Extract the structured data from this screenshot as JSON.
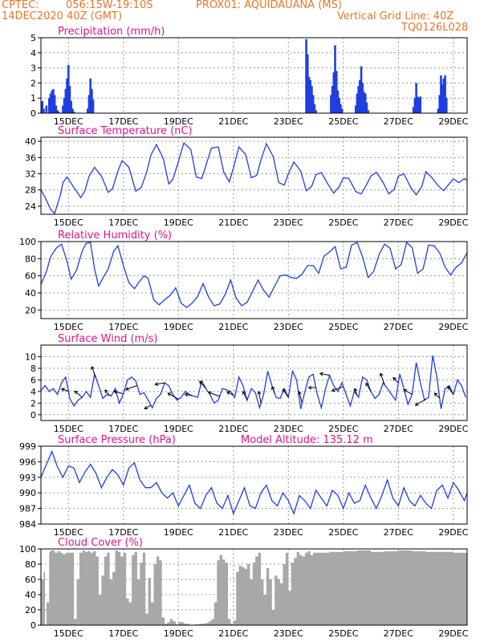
{
  "header": {
    "source": "CPTEC:",
    "coords": "056:15W-19:10S",
    "location": "PROX01: AQUIDAUANA (MS)",
    "date": "14DEC2020 40Z (GMT)",
    "grid_note": "Vertical Grid Line: 40Z",
    "model": "TQ0126L028"
  },
  "colors": {
    "header": "#e8762a",
    "title": "#e0138c",
    "series": "#1f3fe0",
    "cloud": "#a8a8a8",
    "grid": "#9a9a9a"
  },
  "chart_data": [
    {
      "id": "precip",
      "type": "bar",
      "title": "Precipitation (mm/h)",
      "ylim": [
        0,
        5
      ],
      "yticks": [
        0,
        1,
        2,
        3,
        4,
        5
      ],
      "xlim": [
        14,
        29.5
      ],
      "xticks": [
        {
          "x": 15,
          "label": "15DEC"
        },
        {
          "x": 17,
          "label": "17DEC"
        },
        {
          "x": 19,
          "label": "19DEC"
        },
        {
          "x": 21,
          "label": "21DEC"
        },
        {
          "x": 23,
          "label": "23DEC"
        },
        {
          "x": 25,
          "label": "25DEC"
        },
        {
          "x": 27,
          "label": "27DEC"
        },
        {
          "x": 29,
          "label": "29DEC"
        }
      ],
      "x": [
        14.05,
        14.1,
        14.2,
        14.3,
        14.35,
        14.4,
        14.45,
        14.5,
        14.55,
        14.6,
        14.65,
        14.8,
        14.85,
        14.9,
        14.95,
        15.0,
        15.05,
        15.1,
        15.15,
        15.2,
        15.7,
        15.75,
        15.8,
        15.85,
        15.9,
        23.65,
        23.7,
        23.75,
        23.8,
        23.85,
        23.9,
        23.95,
        24.0,
        24.55,
        24.6,
        24.65,
        24.7,
        24.75,
        24.8,
        24.85,
        24.9,
        24.95,
        25.45,
        25.5,
        25.55,
        25.6,
        25.65,
        25.7,
        25.75,
        25.8,
        25.85,
        25.9,
        27.55,
        27.6,
        27.65,
        27.7,
        27.75,
        27.8,
        28.45,
        28.5,
        28.55,
        28.6,
        28.65,
        28.7,
        28.75
      ],
      "values": [
        0.8,
        0.3,
        0.5,
        1.0,
        1.3,
        1.5,
        1.6,
        1.2,
        0.5,
        0.2,
        0.1,
        0.5,
        1.0,
        1.6,
        2.3,
        3.2,
        1.8,
        0.8,
        0.3,
        0.1,
        0.3,
        1.2,
        2.3,
        1.6,
        0.9,
        4.9,
        3.9,
        2.4,
        2.2,
        1.8,
        1.2,
        0.6,
        0.2,
        1.2,
        1.8,
        2.7,
        4.5,
        2.8,
        1.5,
        1.0,
        0.6,
        0.3,
        0.5,
        1.3,
        1.8,
        2.2,
        3.1,
        2.0,
        1.4,
        1.3,
        0.7,
        0.2,
        0.4,
        1.0,
        2.0,
        1.1,
        1.0,
        1.1,
        0.3,
        1.2,
        2.5,
        1.9,
        2.3,
        2.5,
        1.0
      ]
    },
    {
      "id": "temp",
      "type": "line",
      "title": "Surface Temperature (nC)",
      "ylim": [
        22,
        41
      ],
      "yticks": [
        24,
        28,
        32,
        36,
        40
      ],
      "xlim": [
        14,
        29.5
      ],
      "xticks": [
        {
          "x": 15,
          "label": "15DEC"
        },
        {
          "x": 17,
          "label": "17DEC"
        },
        {
          "x": 19,
          "label": "19DEC"
        },
        {
          "x": 21,
          "label": "21DEC"
        },
        {
          "x": 23,
          "label": "23DEC"
        },
        {
          "x": 25,
          "label": "25DEC"
        },
        {
          "x": 27,
          "label": "27DEC"
        },
        {
          "x": 29,
          "label": "29DEC"
        }
      ],
      "x": [
        14.0,
        14.15,
        14.35,
        14.5,
        14.7,
        14.8,
        14.95,
        15.2,
        15.45,
        15.6,
        15.75,
        15.95,
        16.2,
        16.45,
        16.6,
        16.8,
        16.95,
        17.2,
        17.45,
        17.65,
        17.85,
        18.0,
        18.2,
        18.45,
        18.65,
        18.8,
        19.0,
        19.2,
        19.45,
        19.65,
        19.85,
        20.0,
        20.2,
        20.45,
        20.65,
        20.85,
        21.0,
        21.2,
        21.45,
        21.65,
        21.85,
        22.0,
        22.2,
        22.45,
        22.65,
        22.85,
        23.0,
        23.2,
        23.45,
        23.65,
        23.85,
        24.0,
        24.2,
        24.45,
        24.65,
        24.85,
        25.0,
        25.2,
        25.45,
        25.65,
        25.85,
        26.0,
        26.2,
        26.45,
        26.65,
        26.85,
        27.0,
        27.2,
        27.45,
        27.65,
        27.85,
        28.0,
        28.2,
        28.45,
        28.65,
        28.85,
        29.0,
        29.2,
        29.4,
        29.5
      ],
      "values": [
        28.0,
        26.2,
        23.2,
        22.2,
        26.6,
        29.8,
        31.2,
        28.6,
        26.1,
        27.8,
        31.4,
        33.6,
        31.4,
        27.4,
        28.3,
        32.6,
        35.2,
        33.6,
        27.7,
        28.6,
        32.5,
        36.6,
        39.2,
        35.8,
        29.5,
        30.6,
        35.0,
        39.6,
        38.0,
        31.2,
        30.8,
        34.0,
        38.3,
        38.6,
        32.4,
        30.0,
        33.4,
        38.6,
        36.7,
        31.0,
        31.6,
        35.4,
        39.4,
        36.2,
        29.8,
        29.2,
        32.0,
        34.9,
        32.6,
        27.8,
        28.9,
        31.8,
        32.3,
        29.3,
        27.2,
        28.8,
        31.0,
        30.8,
        27.6,
        27.0,
        29.4,
        31.4,
        32.4,
        29.8,
        27.0,
        28.2,
        31.4,
        32.0,
        28.6,
        26.8,
        28.8,
        32.5,
        31.2,
        29.0,
        27.8,
        29.5,
        30.7,
        29.8,
        30.8,
        30.3
      ]
    },
    {
      "id": "rh",
      "type": "line",
      "title": "Relative Humidity (%)",
      "ylim": [
        10,
        100
      ],
      "yticks": [
        20,
        40,
        60,
        80,
        100
      ],
      "xlim": [
        14,
        29.5
      ],
      "xticks": [
        {
          "x": 15,
          "label": "15DEC"
        },
        {
          "x": 17,
          "label": "17DEC"
        },
        {
          "x": 19,
          "label": "19DEC"
        },
        {
          "x": 21,
          "label": "21DEC"
        },
        {
          "x": 23,
          "label": "23DEC"
        },
        {
          "x": 25,
          "label": "25DEC"
        },
        {
          "x": 27,
          "label": "27DEC"
        },
        {
          "x": 29,
          "label": "29DEC"
        }
      ],
      "x": [
        14.0,
        14.2,
        14.35,
        14.55,
        14.75,
        14.95,
        15.1,
        15.3,
        15.5,
        15.65,
        15.8,
        15.95,
        16.1,
        16.3,
        16.45,
        16.65,
        16.8,
        17.0,
        17.2,
        17.4,
        17.6,
        17.75,
        17.9,
        18.1,
        18.3,
        18.5,
        18.7,
        18.9,
        19.1,
        19.3,
        19.5,
        19.7,
        19.9,
        20.1,
        20.3,
        20.5,
        20.7,
        20.9,
        21.1,
        21.3,
        21.5,
        21.7,
        21.9,
        22.1,
        22.3,
        22.5,
        22.7,
        22.9,
        23.1,
        23.3,
        23.5,
        23.7,
        23.9,
        24.1,
        24.3,
        24.5,
        24.7,
        24.9,
        25.1,
        25.3,
        25.5,
        25.7,
        25.9,
        26.1,
        26.3,
        26.5,
        26.7,
        26.9,
        27.1,
        27.3,
        27.5,
        27.7,
        27.9,
        28.1,
        28.3,
        28.5,
        28.7,
        28.9,
        29.1,
        29.3,
        29.5
      ],
      "values": [
        50,
        65,
        82,
        92,
        97,
        77,
        56,
        67,
        89,
        98,
        99,
        68,
        48,
        60,
        68,
        89,
        95,
        72,
        52,
        45,
        54,
        60,
        57,
        32,
        26,
        32,
        37,
        46,
        28,
        23,
        28,
        36,
        51,
        35,
        25,
        27,
        38,
        55,
        34,
        25,
        29,
        42,
        55,
        43,
        35,
        48,
        60,
        61,
        58,
        57,
        62,
        72,
        72,
        63,
        83,
        88,
        94,
        68,
        70,
        96,
        99,
        82,
        58,
        65,
        85,
        97,
        92,
        68,
        73,
        99,
        93,
        63,
        68,
        96,
        95,
        87,
        70,
        61,
        70,
        75,
        87
      ]
    },
    {
      "id": "wind",
      "type": "line",
      "title": "Surface Wind (m/s)",
      "ylim": [
        -1,
        12
      ],
      "yticks": [
        0,
        2,
        4,
        6,
        8,
        10
      ],
      "xlim": [
        14,
        29.5
      ],
      "xticks": [
        {
          "x": 15,
          "label": "15DEC"
        },
        {
          "x": 17,
          "label": "17DEC"
        },
        {
          "x": 19,
          "label": "19DEC"
        },
        {
          "x": 21,
          "label": "21DEC"
        },
        {
          "x": 23,
          "label": "23DEC"
        },
        {
          "x": 25,
          "label": "25DEC"
        },
        {
          "x": 27,
          "label": "27DEC"
        },
        {
          "x": 29,
          "label": "29DEC"
        }
      ],
      "x": [
        14.0,
        14.15,
        14.3,
        14.45,
        14.6,
        14.75,
        14.9,
        15.05,
        15.2,
        15.35,
        15.5,
        15.65,
        15.8,
        15.95,
        16.1,
        16.25,
        16.4,
        16.55,
        16.7,
        16.85,
        17.0,
        17.15,
        17.3,
        17.45,
        17.6,
        17.75,
        17.9,
        18.05,
        18.2,
        18.35,
        18.5,
        18.65,
        18.8,
        18.95,
        19.1,
        19.25,
        19.4,
        19.55,
        19.7,
        19.85,
        20.0,
        20.15,
        20.3,
        20.45,
        20.6,
        20.75,
        20.9,
        21.05,
        21.2,
        21.35,
        21.5,
        21.65,
        21.8,
        21.95,
        22.1,
        22.25,
        22.4,
        22.55,
        22.7,
        22.85,
        23.0,
        23.15,
        23.3,
        23.45,
        23.6,
        23.75,
        23.9,
        24.05,
        24.2,
        24.35,
        24.5,
        24.65,
        24.8,
        24.95,
        25.1,
        25.25,
        25.4,
        25.55,
        25.7,
        25.85,
        26.0,
        26.15,
        26.3,
        26.45,
        26.6,
        26.75,
        26.9,
        27.05,
        27.2,
        27.35,
        27.5,
        27.65,
        27.8,
        27.95,
        28.1,
        28.25,
        28.4,
        28.55,
        28.7,
        28.85,
        29.0,
        29.15,
        29.3,
        29.45
      ],
      "values": [
        4.2,
        5.0,
        4.0,
        4.5,
        3.5,
        5.5,
        6.5,
        2.8,
        1.5,
        2.5,
        3.0,
        4.0,
        3.0,
        7.0,
        5.0,
        2.8,
        3.5,
        3.2,
        4.5,
        2.0,
        3.6,
        6.0,
        6.5,
        5.8,
        3.5,
        3.8,
        2.5,
        1.2,
        2.8,
        3.5,
        5.5,
        5.0,
        3.5,
        2.5,
        3.0,
        4.0,
        3.5,
        3.2,
        3.0,
        5.8,
        4.5,
        3.5,
        2.0,
        2.5,
        4.5,
        4.3,
        4.0,
        3.0,
        6.5,
        5.0,
        2.5,
        4.5,
        3.8,
        1.2,
        3.5,
        7.5,
        5.0,
        3.0,
        2.8,
        4.5,
        3.0,
        7.5,
        6.0,
        1.0,
        4.0,
        6.5,
        7.0,
        3.5,
        1.2,
        4.5,
        6.8,
        5.0,
        4.0,
        5.5,
        3.5,
        1.5,
        4.0,
        3.0,
        6.5,
        6.0,
        4.0,
        2.8,
        3.5,
        5.5,
        4.5,
        3.5,
        2.5,
        7.0,
        4.5,
        1.8,
        3.5,
        9.0,
        5.5,
        2.5,
        3.0,
        10.2,
        6.5,
        1.0,
        4.5,
        5.0,
        3.5,
        6.0,
        5.0,
        3.0
      ]
    },
    {
      "id": "press",
      "type": "line",
      "title": "Surface Pressure (hPa)",
      "annotation": "Model Altitude: 135.12 m",
      "ylim": [
        984,
        999
      ],
      "yticks": [
        984,
        987,
        990,
        993,
        996,
        999
      ],
      "xlim": [
        14,
        29.5
      ],
      "xticks": [
        {
          "x": 15,
          "label": "15DEC"
        },
        {
          "x": 17,
          "label": "17DEC"
        },
        {
          "x": 19,
          "label": "19DEC"
        },
        {
          "x": 21,
          "label": "21DEC"
        },
        {
          "x": 23,
          "label": "23DEC"
        },
        {
          "x": 25,
          "label": "25DEC"
        },
        {
          "x": 27,
          "label": "27DEC"
        },
        {
          "x": 29,
          "label": "29DEC"
        }
      ],
      "x": [
        14.0,
        14.2,
        14.4,
        14.6,
        14.8,
        15.0,
        15.2,
        15.4,
        15.6,
        15.8,
        16.0,
        16.2,
        16.4,
        16.6,
        16.8,
        17.0,
        17.2,
        17.4,
        17.6,
        17.8,
        18.0,
        18.2,
        18.4,
        18.6,
        18.8,
        19.0,
        19.2,
        19.4,
        19.6,
        19.8,
        20.0,
        20.2,
        20.4,
        20.6,
        20.8,
        21.0,
        21.2,
        21.4,
        21.6,
        21.8,
        22.0,
        22.2,
        22.4,
        22.6,
        22.8,
        23.0,
        23.2,
        23.4,
        23.6,
        23.8,
        24.0,
        24.2,
        24.4,
        24.6,
        24.8,
        25.0,
        25.2,
        25.4,
        25.6,
        25.8,
        26.0,
        26.2,
        26.4,
        26.6,
        26.8,
        27.0,
        27.2,
        27.4,
        27.6,
        27.8,
        28.0,
        28.2,
        28.4,
        28.6,
        28.8,
        29.0,
        29.2,
        29.4,
        29.5
      ],
      "values": [
        993.0,
        995.5,
        998.0,
        995.0,
        993.0,
        995.2,
        994.8,
        992.0,
        994.0,
        995.5,
        993.8,
        991.0,
        993.0,
        994.5,
        993.5,
        991.5,
        994.8,
        995.8,
        992.5,
        991.0,
        991.0,
        992.0,
        990.0,
        989.0,
        990.0,
        987.5,
        989.5,
        991.5,
        988.0,
        987.0,
        989.5,
        991.0,
        988.0,
        987.0,
        989.5,
        986.0,
        988.5,
        991.0,
        987.5,
        987.0,
        990.0,
        991.5,
        988.5,
        987.5,
        990.0,
        988.5,
        986.0,
        989.5,
        988.5,
        987.0,
        990.5,
        989.0,
        987.5,
        990.5,
        989.5,
        987.0,
        990.0,
        988.0,
        988.5,
        991.5,
        989.0,
        987.0,
        989.5,
        992.5,
        989.0,
        987.5,
        991.0,
        988.5,
        987.5,
        989.5,
        988.0,
        987.0,
        990.5,
        991.5,
        989.0,
        992.0,
        990.5,
        988.5,
        990.0
      ]
    },
    {
      "id": "cloud",
      "type": "area",
      "title": "Cloud Cover (%)",
      "ylim": [
        0,
        100
      ],
      "yticks": [
        0,
        20,
        40,
        60,
        80,
        100
      ],
      "xlim": [
        14,
        29.5
      ],
      "xticks": [
        {
          "x": 15,
          "label": "15DEC"
        },
        {
          "x": 17,
          "label": "17DEC"
        },
        {
          "x": 19,
          "label": "19DEC"
        },
        {
          "x": 21,
          "label": "21DEC"
        },
        {
          "x": 23,
          "label": "23DEC"
        },
        {
          "x": 25,
          "label": "25DEC"
        },
        {
          "x": 27,
          "label": "27DEC"
        },
        {
          "x": 29,
          "label": "29DEC"
        }
      ],
      "x": [
        14.0,
        14.1,
        14.15,
        14.2,
        14.3,
        14.35,
        14.5,
        14.6,
        14.7,
        14.8,
        14.9,
        15.0,
        15.2,
        15.3,
        15.4,
        15.5,
        15.6,
        15.7,
        15.8,
        15.9,
        16.0,
        16.1,
        16.2,
        16.3,
        16.4,
        16.5,
        16.6,
        16.7,
        16.8,
        16.9,
        17.0,
        17.1,
        17.2,
        17.3,
        17.4,
        17.5,
        17.6,
        17.7,
        17.8,
        17.9,
        18.0,
        18.1,
        18.2,
        18.3,
        18.4,
        18.5,
        18.6,
        18.7,
        18.8,
        18.9,
        19.0,
        19.2,
        19.4,
        19.6,
        19.8,
        20.0,
        20.1,
        20.2,
        20.3,
        20.4,
        20.5,
        20.6,
        20.7,
        20.8,
        20.9,
        21.0,
        21.1,
        21.2,
        21.3,
        21.4,
        21.5,
        21.6,
        21.7,
        21.8,
        21.9,
        22.0,
        22.1,
        22.2,
        22.3,
        22.4,
        22.5,
        22.6,
        22.7,
        22.8,
        22.9,
        23.0,
        23.1,
        23.2,
        23.3,
        23.4,
        23.5,
        23.6,
        23.7,
        23.8,
        23.9,
        24.0,
        24.5,
        25.0,
        25.5,
        26.0,
        26.5,
        27.0,
        27.5,
        28.0,
        28.5,
        29.0,
        29.5
      ],
      "values": [
        60,
        70,
        0,
        30,
        96,
        98,
        95,
        97,
        95,
        93,
        95,
        95,
        8,
        60,
        95,
        98,
        96,
        97,
        95,
        97,
        90,
        40,
        65,
        90,
        95,
        60,
        70,
        98,
        96,
        90,
        95,
        35,
        30,
        92,
        96,
        60,
        82,
        95,
        15,
        62,
        30,
        80,
        90,
        85,
        10,
        2,
        4,
        8,
        5,
        1,
        4,
        2,
        0,
        1,
        2,
        3,
        5,
        8,
        30,
        85,
        92,
        86,
        82,
        8,
        2,
        6,
        70,
        78,
        76,
        74,
        80,
        60,
        82,
        90,
        95,
        60,
        40,
        75,
        60,
        20,
        65,
        60,
        55,
        80,
        95,
        45,
        82,
        88,
        96,
        92,
        90,
        95,
        97,
        92,
        95,
        95,
        96,
        97,
        98,
        96,
        97,
        98,
        97,
        96,
        96,
        95,
        96
      ]
    }
  ]
}
